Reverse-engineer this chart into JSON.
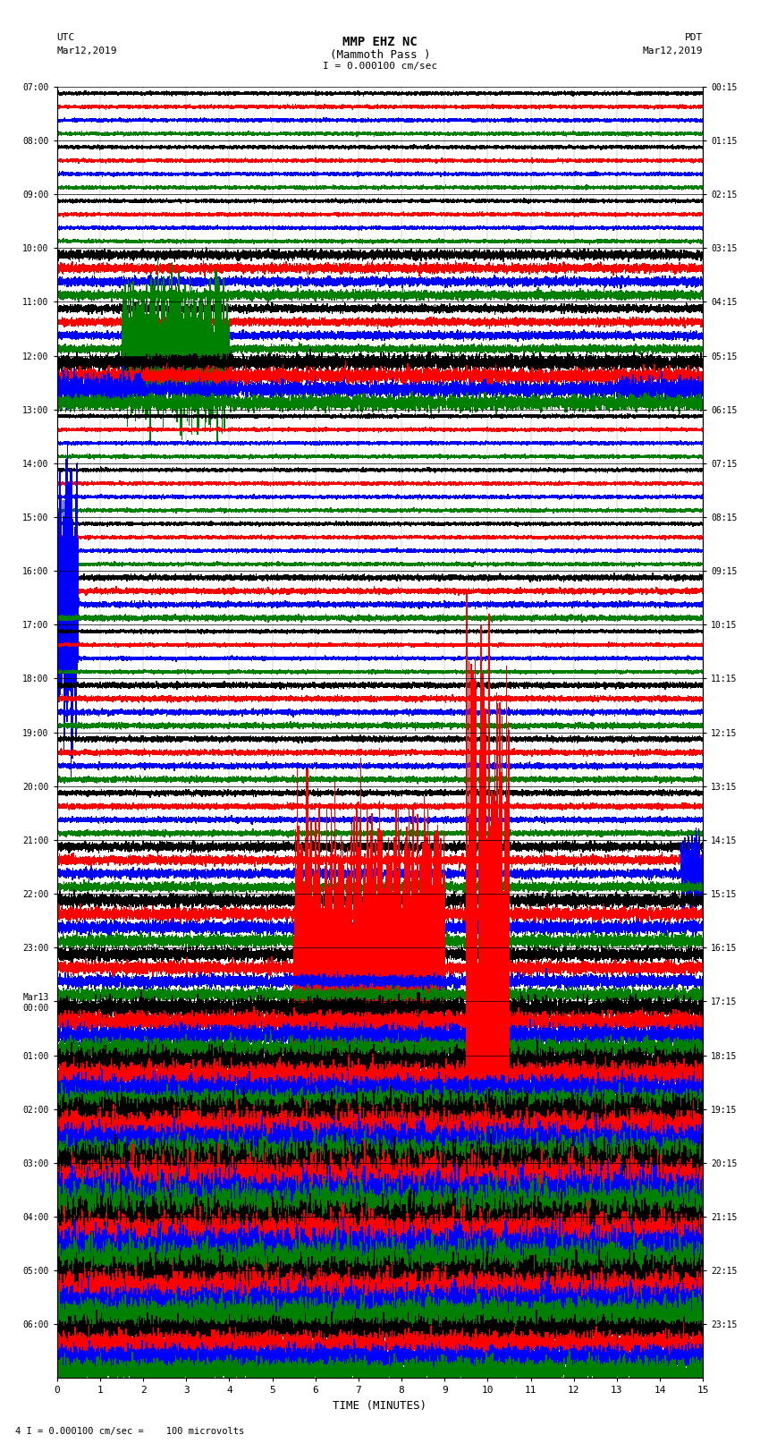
{
  "title_line1": "MMP EHZ NC",
  "title_line2": "(Mammoth Pass )",
  "scale_label": "I = 0.000100 cm/sec",
  "bottom_label": "4 I = 0.000100 cm/sec =    100 microvolts",
  "xlabel": "TIME (MINUTES)",
  "utc_label": "UTC",
  "utc_date": "Mar12,2019",
  "pdt_label": "PDT",
  "pdt_date": "Mar12,2019",
  "bg_color": "#ffffff",
  "trace_color_order": [
    "black",
    "red",
    "blue",
    "green"
  ],
  "left_times": [
    "07:00",
    "08:00",
    "09:00",
    "10:00",
    "11:00",
    "12:00",
    "13:00",
    "14:00",
    "15:00",
    "16:00",
    "17:00",
    "18:00",
    "19:00",
    "20:00",
    "21:00",
    "22:00",
    "23:00",
    "Mar13\n00:00",
    "01:00",
    "02:00",
    "03:00",
    "04:00",
    "05:00",
    "06:00"
  ],
  "right_times": [
    "00:15",
    "01:15",
    "02:15",
    "03:15",
    "04:15",
    "05:15",
    "06:15",
    "07:15",
    "08:15",
    "09:15",
    "10:15",
    "11:15",
    "12:15",
    "13:15",
    "14:15",
    "15:15",
    "16:15",
    "17:15",
    "18:15",
    "19:15",
    "20:15",
    "21:15",
    "22:15",
    "23:15"
  ],
  "num_rows": 24,
  "traces_per_row": 4,
  "xmin": 0,
  "xmax": 15,
  "noise_seed": 12345,
  "grid_color": "#999999",
  "font_family": "monospace",
  "noise_levels": [
    0.012,
    0.012,
    0.012,
    0.035,
    0.03,
    0.06,
    0.012,
    0.012,
    0.012,
    0.02,
    0.012,
    0.02,
    0.02,
    0.02,
    0.035,
    0.05,
    0.05,
    0.08,
    0.1,
    0.15,
    0.2,
    0.18,
    0.15,
    0.1
  ]
}
